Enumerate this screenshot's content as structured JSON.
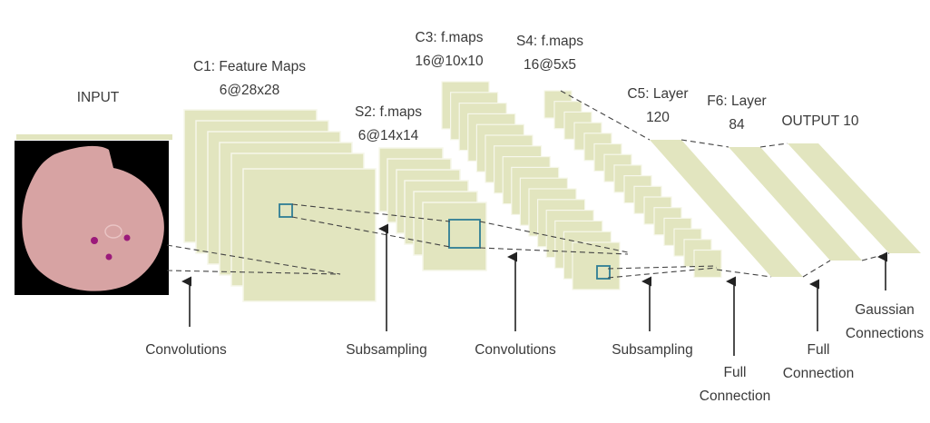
{
  "colors": {
    "map_fill": "#e2e5bf",
    "map_stroke": "#f6f7ea",
    "highlight": "#2e7d95",
    "line": "#444444",
    "text": "#3a3a3a",
    "cell_bg": "#d7a3a3",
    "cell_dots": "#9b1a7a"
  },
  "input": {
    "label": "INPUT",
    "image_icon": "blood-cell-image"
  },
  "layers": {
    "c1": {
      "name": "C1: Feature Maps",
      "shape": "6@28x28"
    },
    "s2": {
      "name": "S2: f.maps",
      "shape": "6@14x14"
    },
    "c3": {
      "name": "C3: f.maps",
      "shape": "16@10x10"
    },
    "s4": {
      "name": "S4: f.maps",
      "shape": "16@5x5"
    },
    "c5": {
      "name": "C5: Layer",
      "shape": "120"
    },
    "f6": {
      "name": "F6: Layer",
      "shape": "84"
    },
    "output": {
      "name": "OUTPUT 10"
    }
  },
  "operations": [
    {
      "lines": [
        "Convolutions"
      ]
    },
    {
      "lines": [
        "Subsampling"
      ]
    },
    {
      "lines": [
        "Convolutions"
      ]
    },
    {
      "lines": [
        "Subsampling"
      ]
    },
    {
      "lines": [
        "Full",
        "Connection"
      ]
    },
    {
      "lines": [
        "Full",
        "Connection"
      ]
    },
    {
      "lines": [
        "Gaussian",
        "Connections"
      ]
    }
  ]
}
